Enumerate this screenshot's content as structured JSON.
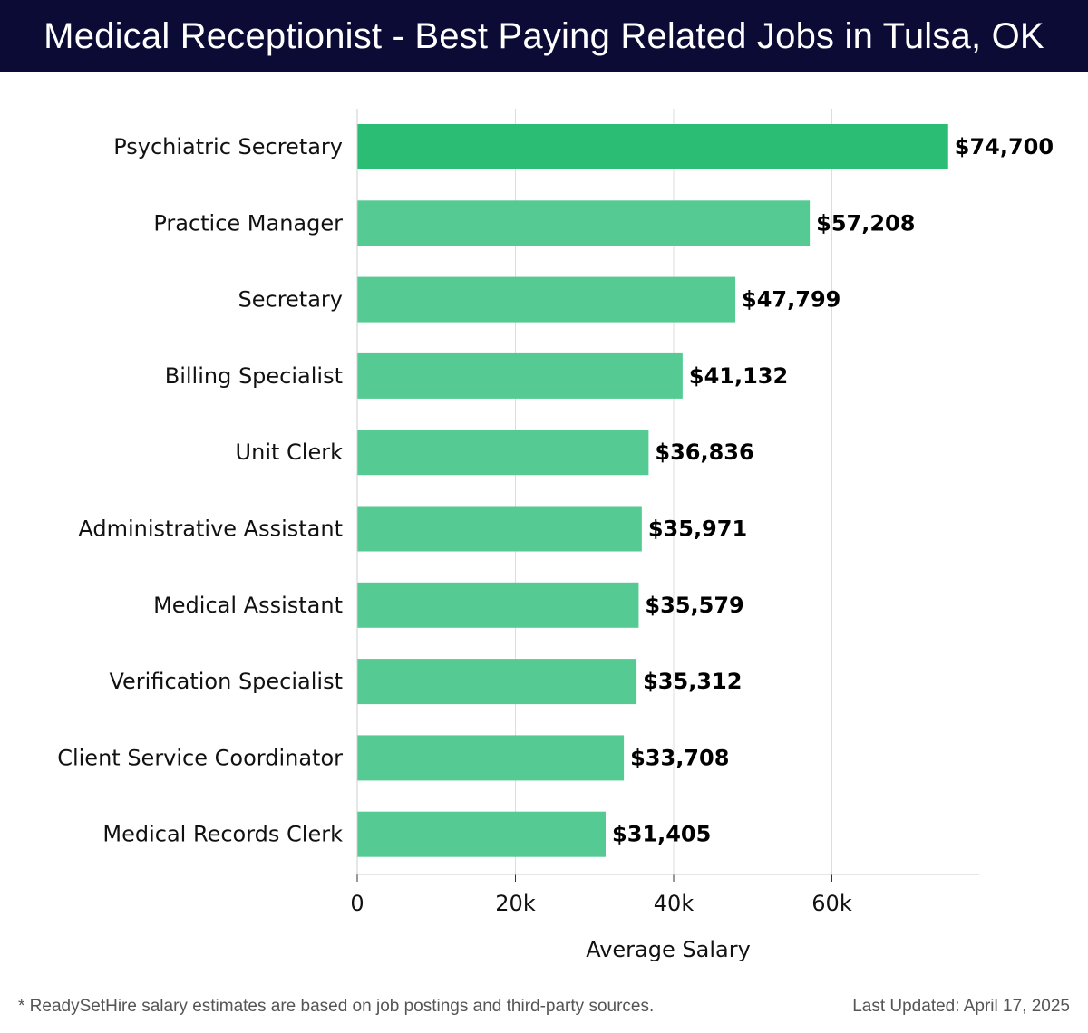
{
  "header": {
    "title": "Medical Receptionist - Best Paying Related Jobs in Tulsa, OK"
  },
  "colors": {
    "header_bg": "#0b0b36",
    "bar_top": "#2bbd74",
    "bar": "#55cb93",
    "grid": "#dddddd"
  },
  "chart_data": {
    "type": "bar",
    "orientation": "horizontal",
    "title": "Medical Receptionist - Best Paying Related Jobs in Tulsa, OK",
    "xlabel": "Average Salary",
    "ylabel": "",
    "categories": [
      "Psychiatric Secretary",
      "Practice Manager",
      "Secretary",
      "Billing Specialist",
      "Unit Clerk",
      "Administrative Assistant",
      "Medical Assistant",
      "Verification Specialist",
      "Client Service Coordinator",
      "Medical Records Clerk"
    ],
    "values": [
      74700,
      57208,
      47799,
      41132,
      36836,
      35971,
      35579,
      35312,
      33708,
      31405
    ],
    "value_labels": [
      "$74,700",
      "$57,208",
      "$47,799",
      "$41,132",
      "$36,836",
      "$35,971",
      "$35,579",
      "$35,312",
      "$33,708",
      "$31,405"
    ],
    "xticks": [
      0,
      20000,
      40000,
      60000
    ],
    "xtick_labels": [
      "0",
      "20k",
      "40k",
      "60k"
    ],
    "xlim": [
      0,
      78600
    ],
    "grid": "vertical"
  },
  "footer": {
    "note": "* ReadySetHire salary estimates are based on job postings and third-party sources.",
    "updated": "Last Updated: April 17, 2025"
  }
}
